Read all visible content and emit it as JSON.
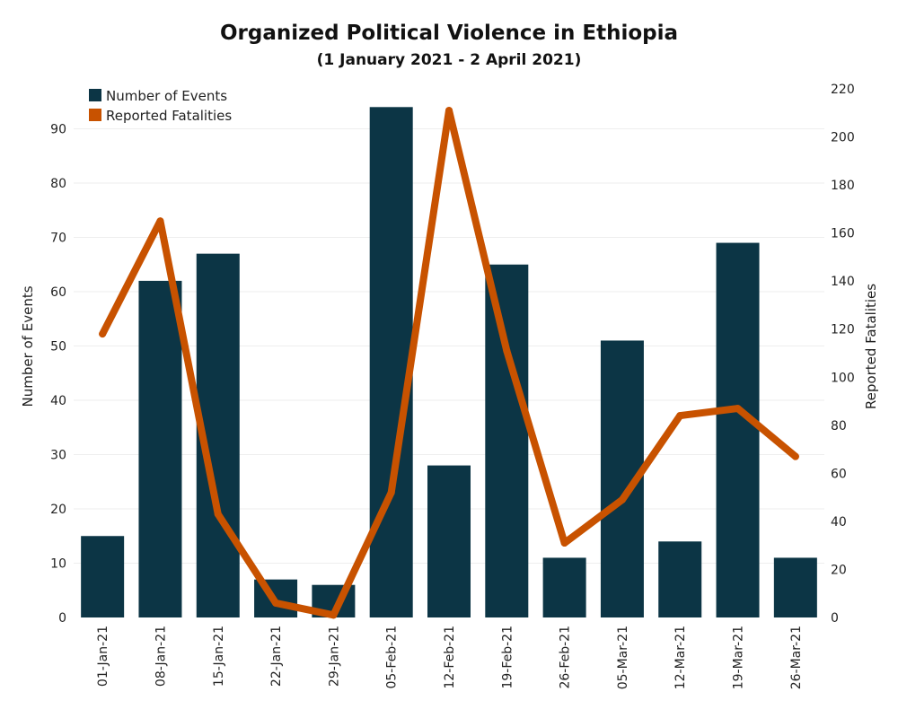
{
  "chart_data": {
    "type": "bar",
    "title": "Organized Political Violence in Ethiopia",
    "subtitle": "(1 January 2021 - 2 April 2021)",
    "categories": [
      "01-Jan-21",
      "08-Jan-21",
      "15-Jan-21",
      "22-Jan-21",
      "29-Jan-21",
      "05-Feb-21",
      "12-Feb-21",
      "19-Feb-21",
      "26-Feb-21",
      "05-Mar-21",
      "12-Mar-21",
      "19-Mar-21",
      "26-Mar-21"
    ],
    "series": [
      {
        "name": "Number of Events",
        "type": "bar",
        "axis": "left",
        "color": "#0c3545",
        "values": [
          15,
          62,
          67,
          7,
          6,
          94,
          28,
          65,
          11,
          51,
          14,
          69,
          11
        ]
      },
      {
        "name": "Reported Fatalities",
        "type": "line",
        "axis": "right",
        "color": "#c85200",
        "values": [
          118,
          165,
          43,
          6,
          1,
          52,
          211,
          111,
          31,
          49,
          84,
          87,
          67
        ]
      }
    ],
    "ylabel": "Number of Events",
    "y2label": "Reported Fatalities",
    "ylim": [
      0,
      95
    ],
    "y2lim": [
      0,
      220
    ],
    "yticks": [
      0,
      10,
      20,
      30,
      40,
      50,
      60,
      70,
      80,
      90
    ],
    "y2ticks": [
      0,
      20,
      40,
      60,
      80,
      100,
      120,
      140,
      160,
      180,
      200,
      220
    ],
    "grid": true,
    "legend_position": "top-left"
  }
}
